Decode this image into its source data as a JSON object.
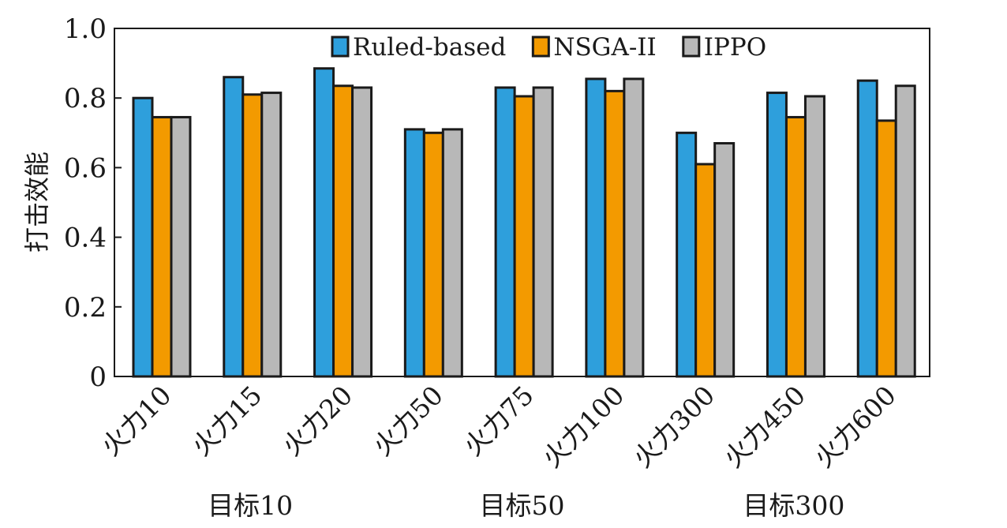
{
  "chart_data": {
    "type": "bar",
    "title": "",
    "xlabel": "",
    "ylabel": "打击效能",
    "ylim": [
      0,
      1.0
    ],
    "yticks": [
      "0",
      "0.2",
      "0.4",
      "0.6",
      "0.8",
      "1.0"
    ],
    "ytick_values": [
      0,
      0.2,
      0.4,
      0.6,
      0.8,
      1.0
    ],
    "grid": false,
    "legend_position": "top",
    "categories": [
      "火力10",
      "火力15",
      "火力20",
      "火力50",
      "火力75",
      "火力100",
      "火力300",
      "火力450",
      "火力600"
    ],
    "groups": [
      {
        "label": "目标10",
        "categories": 3
      },
      {
        "label": "目标50",
        "categories": 3
      },
      {
        "label": "目标300",
        "categories": 3
      }
    ],
    "series": [
      {
        "name": "Ruled-based",
        "color": "#2e9fdc",
        "values": [
          0.8,
          0.86,
          0.885,
          0.71,
          0.83,
          0.855,
          0.7,
          0.815,
          0.85
        ]
      },
      {
        "name": "NSGA-II",
        "color": "#f39a00",
        "values": [
          0.745,
          0.81,
          0.835,
          0.7,
          0.805,
          0.82,
          0.61,
          0.745,
          0.735
        ]
      },
      {
        "name": "IPPO",
        "color": "#b8b8b8",
        "values": [
          0.745,
          0.815,
          0.83,
          0.71,
          0.83,
          0.855,
          0.67,
          0.805,
          0.835
        ]
      }
    ]
  }
}
